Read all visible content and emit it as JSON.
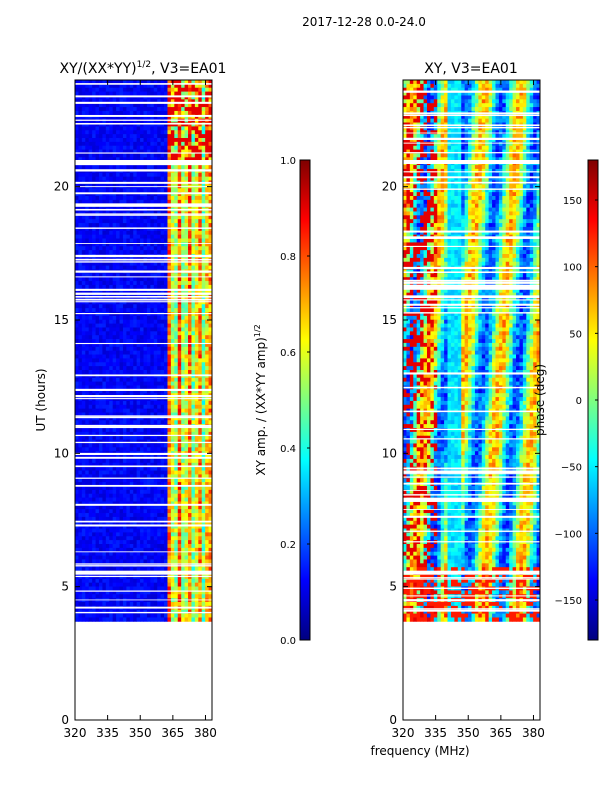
{
  "figure": {
    "suptitle": "2017-12-28 0.0-24.0",
    "xlabel": "frequency (MHz)",
    "ylabel": "UT (hours)"
  },
  "colors": {
    "jet": [
      "#00007f",
      "#0000ff",
      "#007fff",
      "#00ffff",
      "#7fff7f",
      "#ffff00",
      "#ff7f00",
      "#ff0000",
      "#7f0000"
    ],
    "gap": "#ffffff",
    "axes": "#000000"
  },
  "chart_data": [
    {
      "type": "heatmap",
      "name": "amplitude",
      "title_base": "XY/(XX*YY)",
      "title_exp": "1/2",
      "title_tail": ", V3=EA01",
      "x_range": [
        320,
        383
      ],
      "y_range": [
        0,
        24
      ],
      "x_ticks": [
        320,
        335,
        350,
        365,
        380
      ],
      "y_ticks": [
        0,
        5,
        10,
        15,
        20
      ],
      "data_start_ut": 3.7,
      "bright_band_start_mhz": 362,
      "colorbar": {
        "label_base": "XY amp. / (XX*YY amp)",
        "label_exp": "1/2",
        "range": [
          0.0,
          1.0
        ],
        "ticks": [
          "0.0",
          "0.2",
          "0.4",
          "0.6",
          "0.8",
          "1.0"
        ]
      }
    },
    {
      "type": "heatmap",
      "name": "phase",
      "title": "XY, V3=EA01",
      "x_range": [
        320,
        383
      ],
      "y_range": [
        0,
        24
      ],
      "x_ticks": [
        320,
        335,
        350,
        365,
        380
      ],
      "y_ticks": [
        0,
        5,
        10,
        15,
        20
      ],
      "data_start_ut": 3.7,
      "colorbar": {
        "label": "phase (deg)",
        "range": [
          -180,
          180
        ],
        "ticks": [
          "-150",
          "-100",
          "-50",
          "0",
          "50",
          "100",
          "150"
        ]
      }
    }
  ]
}
